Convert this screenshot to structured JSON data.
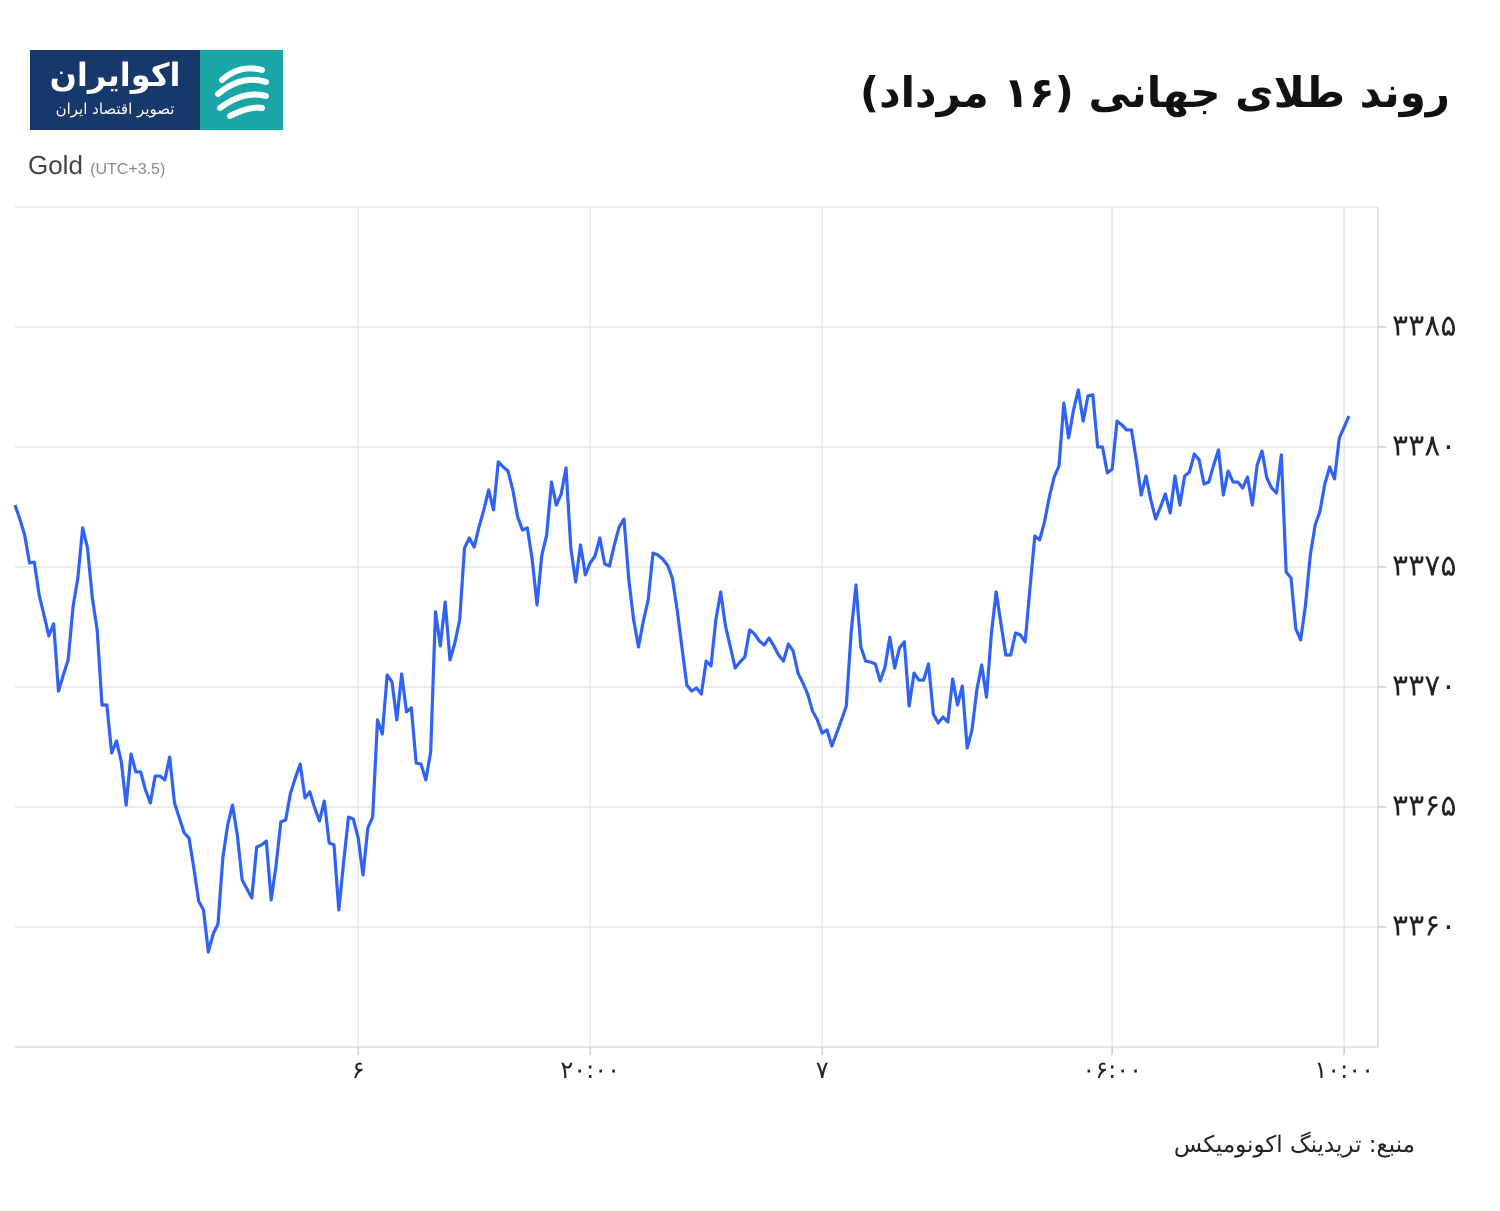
{
  "logo": {
    "name": "اکوایران",
    "tagline": "تصویر اقتصاد ایران"
  },
  "chart_data": {
    "type": "line",
    "title": "روند طلای جهانی (۱۶ مرداد)",
    "timezone": "(UTC+3.5)",
    "source": "منبع: تریدینگ اکونومیکس",
    "grid": true,
    "xlim": [
      0,
      282
    ],
    "xticks": [
      {
        "value": 71,
        "label": "۶"
      },
      {
        "value": 119,
        "label": "۲۰:۰۰"
      },
      {
        "value": 167,
        "label": "۷"
      },
      {
        "value": 227,
        "label": "۰۶:۰۰"
      },
      {
        "value": 275,
        "label": "۱۰:۰۰"
      }
    ],
    "ylim": [
      3355,
      3390
    ],
    "yticks": [
      {
        "value": 3360,
        "label": "۳۳۶۰"
      },
      {
        "value": 3365,
        "label": "۳۳۶۵"
      },
      {
        "value": 3370,
        "label": "۳۳۷۰"
      },
      {
        "value": 3375,
        "label": "۳۳۷۵"
      },
      {
        "value": 3380,
        "label": "۳۳۸۰"
      },
      {
        "value": 3385,
        "label": "۳۳۸۵"
      }
    ],
    "series": [
      {
        "name": "Gold",
        "color": "#2f62f5",
        "values": [
          3377.58,
          3377,
          3376.33,
          3375.17,
          3375.2,
          3373.83,
          3373,
          3372.13,
          3372.63,
          3369.83,
          3370.5,
          3371.13,
          3373.33,
          3374.54,
          3376.63,
          3375.79,
          3373.71,
          3372.38,
          3369.25,
          3369.25,
          3367.25,
          3367.75,
          3366.88,
          3365.08,
          3367.21,
          3366.46,
          3366.46,
          3365.71,
          3365.17,
          3366.29,
          3366.29,
          3366.13,
          3367.08,
          3365.17,
          3364.54,
          3363.92,
          3363.71,
          3362.46,
          3361.08,
          3360.71,
          3358.96,
          3359.71,
          3360.13,
          3362.88,
          3364.25,
          3365.08,
          3363.83,
          3361.96,
          3361.58,
          3361.21,
          3363.33,
          3363.42,
          3363.58,
          3361.13,
          3362.54,
          3364.38,
          3364.46,
          3365.58,
          3366.21,
          3366.79,
          3365.38,
          3365.63,
          3364.96,
          3364.42,
          3365.25,
          3363.5,
          3363.42,
          3360.71,
          3362.71,
          3364.58,
          3364.5,
          3363.71,
          3362.17,
          3364.13,
          3364.58,
          3368.63,
          3368.04,
          3370.5,
          3370.21,
          3368.63,
          3370.54,
          3368.96,
          3369.13,
          3366.83,
          3366.79,
          3366.13,
          3367.29,
          3373.13,
          3371.71,
          3373.54,
          3371.13,
          3371.83,
          3372.79,
          3375.79,
          3376.21,
          3375.83,
          3376.67,
          3377.38,
          3378.21,
          3377.38,
          3379.38,
          3379.17,
          3379,
          3378.21,
          3377.08,
          3376.54,
          3376.63,
          3375.33,
          3373.42,
          3375.5,
          3376.33,
          3378.54,
          3377.58,
          3378.04,
          3379.13,
          3375.79,
          3374.38,
          3375.92,
          3374.67,
          3375.17,
          3375.46,
          3376.21,
          3375.13,
          3375.04,
          3375.92,
          3376.67,
          3377,
          3374.46,
          3372.79,
          3371.67,
          3372.75,
          3373.63,
          3375.58,
          3375.5,
          3375.33,
          3375.08,
          3374.54,
          3373.21,
          3371.63,
          3370.08,
          3369.83,
          3369.96,
          3369.71,
          3371.08,
          3370.88,
          3372.79,
          3373.96,
          3372.54,
          3371.67,
          3370.79,
          3371.04,
          3371.25,
          3372.38,
          3372.21,
          3371.92,
          3371.75,
          3372.04,
          3371.71,
          3371.33,
          3371.08,
          3371.79,
          3371.5,
          3370.58,
          3370.17,
          3369.71,
          3369,
          3368.63,
          3368.08,
          3368.21,
          3367.54,
          3368.08,
          3368.63,
          3369.21,
          3372.29,
          3374.25,
          3371.67,
          3371.08,
          3371.04,
          3370.96,
          3370.25,
          3370.83,
          3372.08,
          3370.79,
          3371.63,
          3371.88,
          3369.21,
          3370.58,
          3370.29,
          3370.29,
          3370.96,
          3368.88,
          3368.5,
          3368.75,
          3368.54,
          3370.33,
          3369.25,
          3370.04,
          3367.46,
          3368.21,
          3369.88,
          3370.92,
          3369.58,
          3372.21,
          3373.96,
          3372.63,
          3371.33,
          3371.33,
          3372.25,
          3372.17,
          3371.88,
          3374.13,
          3376.29,
          3376.13,
          3376.88,
          3377.92,
          3378.75,
          3379.21,
          3381.83,
          3380.38,
          3381.54,
          3382.38,
          3381.08,
          3382.13,
          3382.17,
          3380,
          3380,
          3378.92,
          3379.08,
          3381.08,
          3380.92,
          3380.71,
          3380.71,
          3379.46,
          3378,
          3378.79,
          3377.79,
          3377,
          3377.5,
          3378.04,
          3377.25,
          3378.79,
          3377.58,
          3378.79,
          3378.96,
          3379.71,
          3379.46,
          3378.46,
          3378.54,
          3379.25,
          3379.88,
          3378,
          3379,
          3378.54,
          3378.54,
          3378.29,
          3378.75,
          3377.58,
          3379.25,
          3379.83,
          3378.71,
          3378.29,
          3378.08,
          3379.67,
          3374.79,
          3374.54,
          3372.42,
          3371.96,
          3373.42,
          3375.5,
          3376.75,
          3377.33,
          3378.46,
          3379.17,
          3378.67,
          3380.38,
          3380.83,
          3381.29
        ]
      }
    ]
  }
}
